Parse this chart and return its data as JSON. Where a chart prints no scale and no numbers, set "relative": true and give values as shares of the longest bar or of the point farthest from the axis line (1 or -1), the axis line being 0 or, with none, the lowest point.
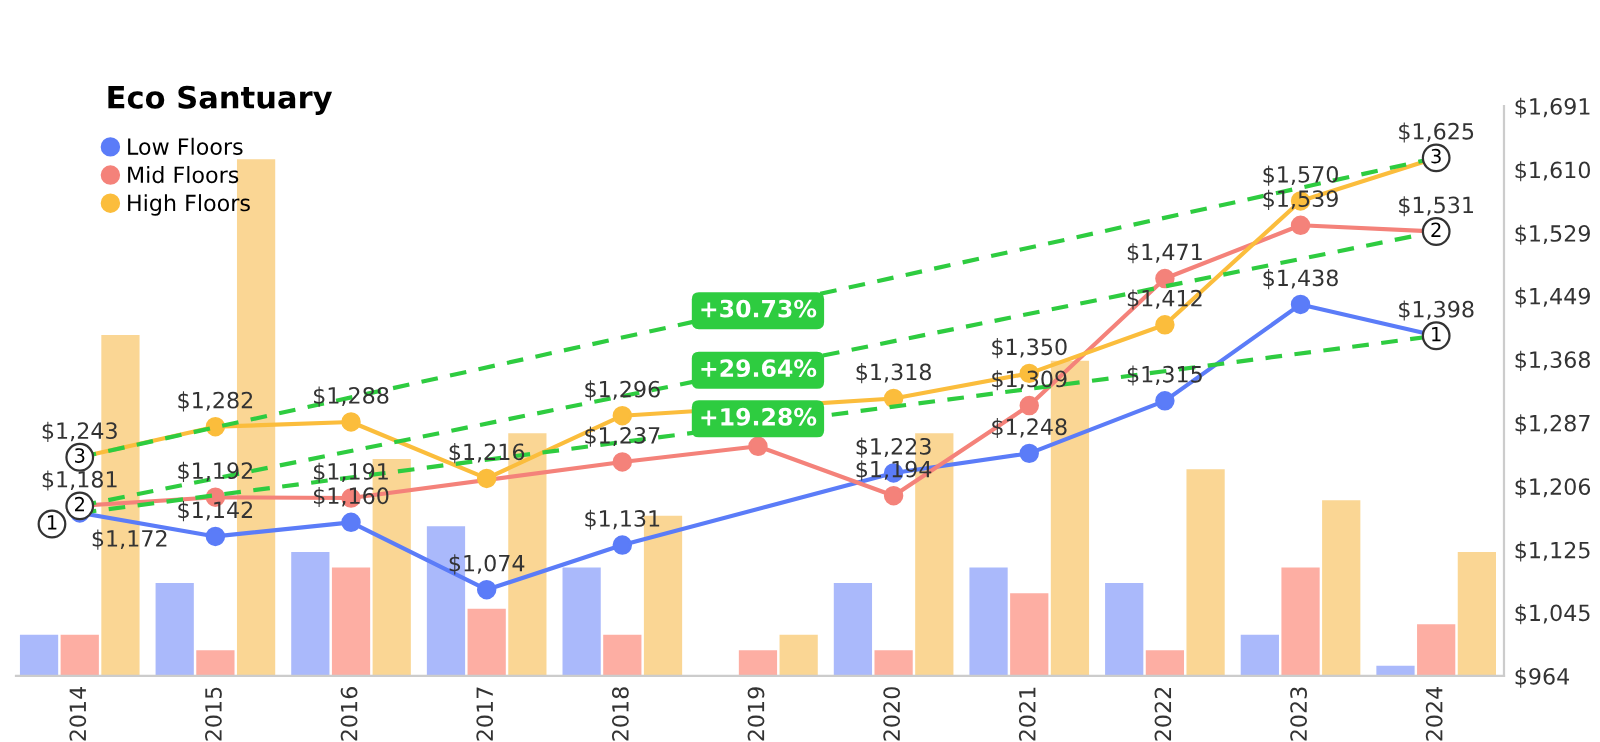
{
  "chart_data": [
    {
      "type": "bar",
      "relative": true,
      "tick_labels": "x",
      "categories": [
        "2014",
        "2015",
        "2016",
        "2017",
        "2018",
        "2019",
        "2020",
        "2021",
        "2022",
        "2023",
        "2024"
      ],
      "series": [
        {
          "color": "#aab9fb",
          "values": [
            0.08,
            0.18,
            0.24,
            0.29,
            0.21,
            0,
            0.18,
            0.21,
            0.18,
            0.08,
            0.02
          ]
        },
        {
          "color": "#fdaea3",
          "values": [
            0.08,
            0.05,
            0.21,
            0.13,
            0.08,
            0.05,
            0.05,
            0.16,
            0.05,
            0.21,
            0.1
          ]
        },
        {
          "color": "#fad694",
          "values": [
            0.66,
            1,
            0.42,
            0.47,
            0.31,
            0.08,
            0.47,
            0.61,
            0.4,
            0.34,
            0.24
          ]
        }
      ]
    },
    {
      "type": "line",
      "title": "Eco Santuary",
      "categories": [
        "2014",
        "2015",
        "2016",
        "2017",
        "2018",
        "2019",
        "2020",
        "2021",
        "2022",
        "2023",
        "2024"
      ],
      "series": [
        {
          "name": "Low Floors",
          "color": "#5b7cf8",
          "marker": "circle",
          "values": [
            1172,
            1142,
            1160,
            1074,
            1131,
            null,
            1223,
            1248,
            1315,
            1438,
            1398
          ],
          "value_labels": [
            "$1,172",
            "$1,142",
            "$1,160",
            "$1,074",
            "$1,131",
            null,
            "$1,223",
            "$1,248",
            "$1,315",
            "$1,438",
            "$1,398"
          ]
        },
        {
          "name": "Mid Floors",
          "color": "#f4827a",
          "marker": "circle",
          "values": [
            1181,
            1192,
            1191,
            null,
            1237,
            1257,
            1194,
            1309,
            1471,
            1539,
            1531
          ],
          "value_labels": [
            "$1,181",
            "$1,192",
            "$1,191",
            null,
            "$1,237",
            null,
            "$1,194",
            "$1,309",
            "$1,471",
            "$1,539",
            "$1,531"
          ]
        },
        {
          "name": "High Floors",
          "color": "#fbbd3c",
          "marker": "circle",
          "values": [
            1243,
            1282,
            1288,
            1216,
            1296,
            null,
            1318,
            1350,
            1412,
            1570,
            1625
          ],
          "value_labels": [
            "$1,243",
            "$1,282",
            "$1,288",
            "$1,216",
            "$1,296",
            null,
            "$1,318",
            "$1,350",
            "$1,412",
            "$1,570",
            "$1,625"
          ]
        },
        {
          "color": "#2ecc40",
          "line_style": "dashed",
          "marker": "circle",
          "values": [
            1243,
            null,
            null,
            null,
            null,
            null,
            null,
            null,
            null,
            null,
            1625
          ]
        },
        {
          "color": "#2ecc40",
          "line_style": "dashed",
          "marker": "circle",
          "values": [
            1181,
            null,
            null,
            null,
            null,
            null,
            null,
            null,
            null,
            null,
            1531
          ]
        },
        {
          "color": "#2ecc40",
          "line_style": "dashed",
          "values": [
            1172,
            null,
            null,
            null,
            null,
            null,
            null,
            null,
            null,
            null,
            1398
          ]
        }
      ],
      "ylim": [
        964,
        1691
      ],
      "yticks": [
        {
          "value": 964,
          "label": "$964"
        },
        {
          "value": 1045,
          "label": "$1,045"
        },
        {
          "value": 1125,
          "label": "$1,125"
        },
        {
          "value": 1206,
          "label": "$1,206"
        },
        {
          "value": 1287,
          "label": "$1,287"
        },
        {
          "value": 1368,
          "label": "$1,368"
        },
        {
          "value": 1449,
          "label": "$1,449"
        },
        {
          "value": 1529,
          "label": "$1,529"
        },
        {
          "value": 1610,
          "label": "$1,610"
        },
        {
          "value": 1691,
          "label": "$1,691"
        }
      ],
      "annotations": [
        {
          "text": "3",
          "x": "2014",
          "y": 1243
        },
        {
          "text": "2",
          "x": "2014",
          "y": 1181
        },
        {
          "text": "1",
          "x": "2014",
          "y": 1172
        },
        {
          "text": "3",
          "x": "2024",
          "y": 1625
        },
        {
          "text": "2",
          "x": "2024",
          "y": 1531
        },
        {
          "text": "1",
          "x": "2024",
          "y": 1398
        },
        {
          "text": "+30.73%",
          "x": "2019",
          "y": 1430
        },
        {
          "text": "+29.64%",
          "x": "2019",
          "y": 1354
        },
        {
          "text": "+19.28%",
          "x": "2019",
          "y": 1292
        }
      ],
      "grid": false,
      "legend": "top left",
      "tick_labels": "y"
    }
  ]
}
